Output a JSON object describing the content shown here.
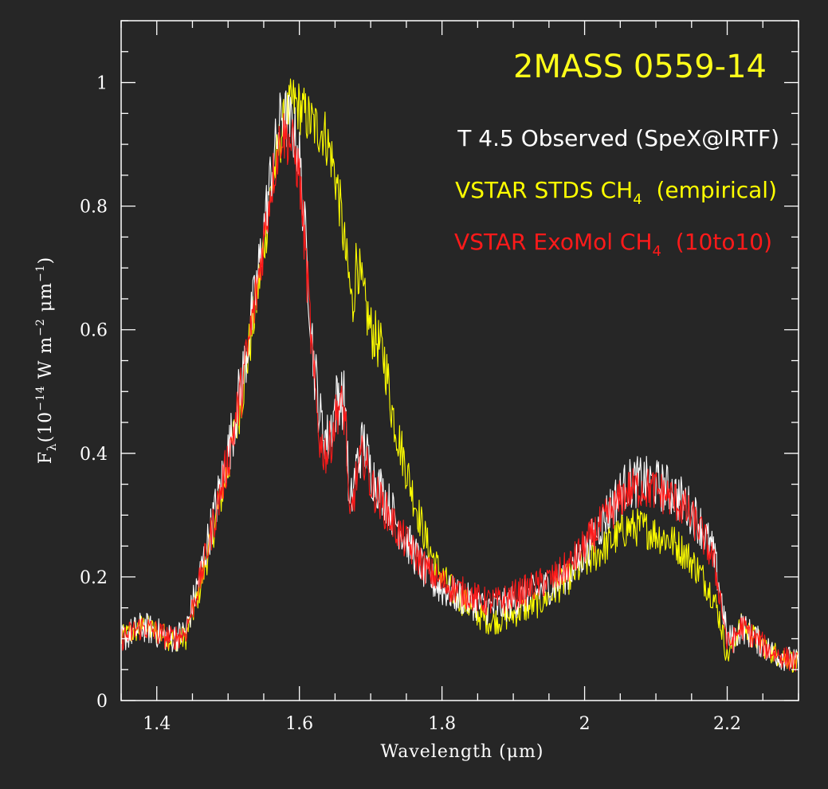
{
  "colors": {
    "background": "#262626",
    "axes": "#ffffff",
    "title": "#ffff1a",
    "observed": "#ffffff",
    "stds": "#ffff00",
    "exomol": "#ff1a1a"
  },
  "chart_data": {
    "type": "line",
    "title": "2MASS 0559-14",
    "xlabel": "Wavelength (μm)",
    "ylabel": {
      "prefix": "F",
      "sub": "λ",
      "open": "(10",
      "exp1": "−14",
      "mid": " W m",
      "exp2": "−2",
      "unit": " μm",
      "exp3": "−1",
      "close": ")"
    },
    "xlim": [
      1.35,
      2.3
    ],
    "ylim": [
      0,
      1.1
    ],
    "xticks": [
      1.4,
      1.6,
      1.8,
      2.0,
      2.2
    ],
    "xtick_labels": [
      "1.4",
      "1.6",
      "1.8",
      "2",
      "2.2"
    ],
    "yticks": [
      0,
      0.2,
      0.4,
      0.6,
      0.8,
      1.0
    ],
    "ytick_labels": [
      "0",
      "0.2",
      "0.4",
      "0.6",
      "0.8",
      "1"
    ],
    "legend_position": "top-right",
    "legend": [
      {
        "text": "T 4.5 Observed (SpeX@IRTF)"
      },
      {
        "text": "VSTAR STDS CH",
        "sub": "4",
        "suffix": "  (empirical)"
      },
      {
        "text": "VSTAR ExoMol CH",
        "sub": "4",
        "suffix": "  (10to10)"
      }
    ],
    "series": [
      {
        "name": "T 4.5 Observed (SpeX@IRTF)",
        "noise": 0.035,
        "points": [
          [
            1.35,
            0.1
          ],
          [
            1.38,
            0.12
          ],
          [
            1.4,
            0.11
          ],
          [
            1.42,
            0.1
          ],
          [
            1.44,
            0.11
          ],
          [
            1.46,
            0.2
          ],
          [
            1.48,
            0.3
          ],
          [
            1.5,
            0.4
          ],
          [
            1.52,
            0.52
          ],
          [
            1.54,
            0.67
          ],
          [
            1.56,
            0.85
          ],
          [
            1.575,
            0.95
          ],
          [
            1.59,
            0.93
          ],
          [
            1.6,
            0.88
          ],
          [
            1.61,
            0.72
          ],
          [
            1.62,
            0.55
          ],
          [
            1.63,
            0.45
          ],
          [
            1.64,
            0.42
          ],
          [
            1.655,
            0.5
          ],
          [
            1.665,
            0.48
          ],
          [
            1.67,
            0.3
          ],
          [
            1.68,
            0.38
          ],
          [
            1.69,
            0.42
          ],
          [
            1.7,
            0.37
          ],
          [
            1.72,
            0.33
          ],
          [
            1.74,
            0.28
          ],
          [
            1.76,
            0.24
          ],
          [
            1.78,
            0.2
          ],
          [
            1.8,
            0.18
          ],
          [
            1.82,
            0.17
          ],
          [
            1.84,
            0.16
          ],
          [
            1.86,
            0.15
          ],
          [
            1.88,
            0.15
          ],
          [
            1.9,
            0.16
          ],
          [
            1.92,
            0.17
          ],
          [
            1.94,
            0.18
          ],
          [
            1.96,
            0.19
          ],
          [
            1.98,
            0.21
          ],
          [
            2.0,
            0.24
          ],
          [
            2.02,
            0.28
          ],
          [
            2.04,
            0.32
          ],
          [
            2.06,
            0.35
          ],
          [
            2.08,
            0.355
          ],
          [
            2.1,
            0.35
          ],
          [
            2.12,
            0.34
          ],
          [
            2.14,
            0.32
          ],
          [
            2.16,
            0.29
          ],
          [
            2.18,
            0.24
          ],
          [
            2.19,
            0.18
          ],
          [
            2.2,
            0.1
          ],
          [
            2.21,
            0.1
          ],
          [
            2.22,
            0.12
          ],
          [
            2.24,
            0.1
          ],
          [
            2.26,
            0.08
          ],
          [
            2.28,
            0.07
          ],
          [
            2.3,
            0.06
          ]
        ]
      },
      {
        "name": "VSTAR STDS CH4 (empirical)",
        "noise": 0.03,
        "points": [
          [
            1.35,
            0.1
          ],
          [
            1.38,
            0.12
          ],
          [
            1.4,
            0.11
          ],
          [
            1.42,
            0.1
          ],
          [
            1.44,
            0.1
          ],
          [
            1.46,
            0.18
          ],
          [
            1.48,
            0.28
          ],
          [
            1.5,
            0.38
          ],
          [
            1.52,
            0.5
          ],
          [
            1.54,
            0.65
          ],
          [
            1.56,
            0.82
          ],
          [
            1.575,
            0.92
          ],
          [
            1.59,
            0.97
          ],
          [
            1.6,
            0.96
          ],
          [
            1.62,
            0.93
          ],
          [
            1.635,
            0.92
          ],
          [
            1.645,
            0.88
          ],
          [
            1.655,
            0.82
          ],
          [
            1.665,
            0.72
          ],
          [
            1.675,
            0.63
          ],
          [
            1.68,
            0.72
          ],
          [
            1.69,
            0.65
          ],
          [
            1.7,
            0.6
          ],
          [
            1.71,
            0.58
          ],
          [
            1.72,
            0.55
          ],
          [
            1.73,
            0.47
          ],
          [
            1.74,
            0.42
          ],
          [
            1.76,
            0.33
          ],
          [
            1.78,
            0.25
          ],
          [
            1.8,
            0.2
          ],
          [
            1.82,
            0.17
          ],
          [
            1.84,
            0.15
          ],
          [
            1.86,
            0.13
          ],
          [
            1.88,
            0.13
          ],
          [
            1.9,
            0.14
          ],
          [
            1.92,
            0.15
          ],
          [
            1.94,
            0.16
          ],
          [
            1.96,
            0.18
          ],
          [
            1.98,
            0.2
          ],
          [
            2.0,
            0.22
          ],
          [
            2.02,
            0.24
          ],
          [
            2.04,
            0.26
          ],
          [
            2.06,
            0.28
          ],
          [
            2.08,
            0.28
          ],
          [
            2.1,
            0.27
          ],
          [
            2.12,
            0.26
          ],
          [
            2.14,
            0.24
          ],
          [
            2.16,
            0.21
          ],
          [
            2.18,
            0.17
          ],
          [
            2.19,
            0.13
          ],
          [
            2.2,
            0.07
          ],
          [
            2.21,
            0.1
          ],
          [
            2.22,
            0.12
          ],
          [
            2.24,
            0.1
          ],
          [
            2.26,
            0.08
          ],
          [
            2.28,
            0.07
          ],
          [
            2.3,
            0.06
          ]
        ]
      },
      {
        "name": "VSTAR ExoMol CH4 (10to10)",
        "noise": 0.03,
        "points": [
          [
            1.35,
            0.1
          ],
          [
            1.38,
            0.12
          ],
          [
            1.4,
            0.11
          ],
          [
            1.42,
            0.1
          ],
          [
            1.44,
            0.11
          ],
          [
            1.46,
            0.19
          ],
          [
            1.48,
            0.29
          ],
          [
            1.5,
            0.39
          ],
          [
            1.52,
            0.51
          ],
          [
            1.54,
            0.66
          ],
          [
            1.56,
            0.83
          ],
          [
            1.575,
            0.92
          ],
          [
            1.59,
            0.9
          ],
          [
            1.6,
            0.85
          ],
          [
            1.61,
            0.7
          ],
          [
            1.62,
            0.52
          ],
          [
            1.63,
            0.41
          ],
          [
            1.64,
            0.4
          ],
          [
            1.655,
            0.48
          ],
          [
            1.665,
            0.46
          ],
          [
            1.67,
            0.28
          ],
          [
            1.68,
            0.36
          ],
          [
            1.69,
            0.4
          ],
          [
            1.7,
            0.35
          ],
          [
            1.72,
            0.31
          ],
          [
            1.74,
            0.27
          ],
          [
            1.76,
            0.24
          ],
          [
            1.78,
            0.21
          ],
          [
            1.8,
            0.19
          ],
          [
            1.82,
            0.18
          ],
          [
            1.84,
            0.17
          ],
          [
            1.86,
            0.16
          ],
          [
            1.88,
            0.16
          ],
          [
            1.9,
            0.17
          ],
          [
            1.92,
            0.18
          ],
          [
            1.94,
            0.19
          ],
          [
            1.96,
            0.2
          ],
          [
            1.98,
            0.22
          ],
          [
            2.0,
            0.25
          ],
          [
            2.02,
            0.28
          ],
          [
            2.04,
            0.31
          ],
          [
            2.06,
            0.34
          ],
          [
            2.08,
            0.345
          ],
          [
            2.1,
            0.34
          ],
          [
            2.12,
            0.33
          ],
          [
            2.14,
            0.31
          ],
          [
            2.16,
            0.28
          ],
          [
            2.18,
            0.23
          ],
          [
            2.19,
            0.17
          ],
          [
            2.2,
            0.09
          ],
          [
            2.21,
            0.1
          ],
          [
            2.22,
            0.12
          ],
          [
            2.24,
            0.1
          ],
          [
            2.26,
            0.08
          ],
          [
            2.28,
            0.07
          ],
          [
            2.3,
            0.06
          ]
        ]
      }
    ]
  }
}
